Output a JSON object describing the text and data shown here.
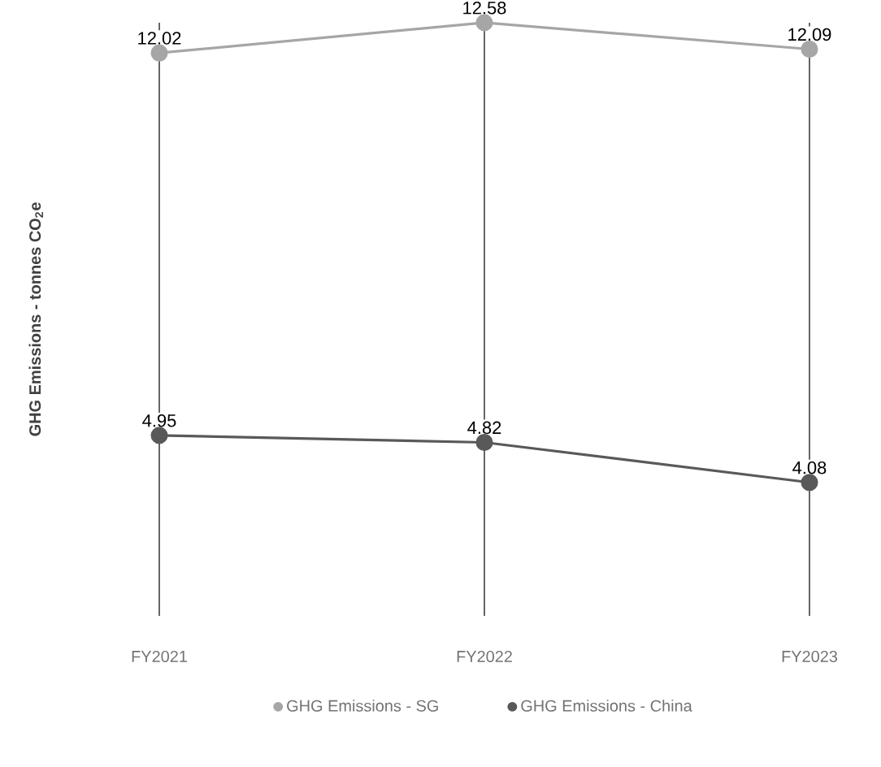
{
  "chart_data": {
    "type": "line",
    "ylabel": "GHG Emissions - tonnes CO$_{2}$e",
    "categories": [
      "FY2021",
      "FY2022",
      "FY2023"
    ],
    "series": [
      {
        "name": "GHG Emissions - SG",
        "color": "#a6a6a6",
        "values": [
          12.02,
          12.58,
          12.09
        ]
      },
      {
        "name": "GHG Emissions - China",
        "color": "#595959",
        "values": [
          4.95,
          4.82,
          4.08
        ]
      }
    ],
    "data_labels": true,
    "grid": "x",
    "legend": "bottom",
    "marker": "circle",
    "line_style": "solid"
  }
}
